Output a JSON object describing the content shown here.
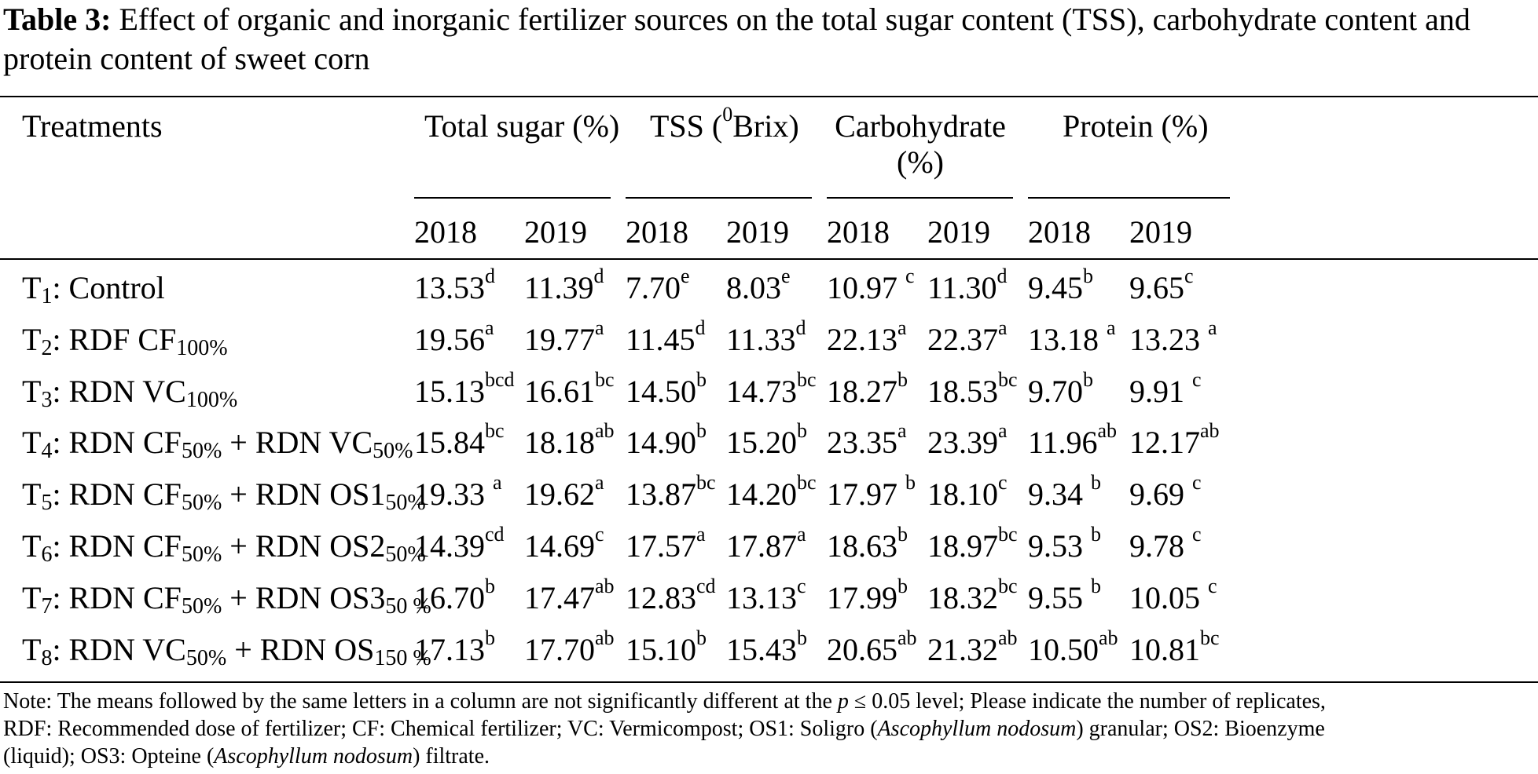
{
  "caption": {
    "label": "Table 3:",
    "text": "Effect of organic and inorganic fertilizer sources on the total sugar content (TSS), carbohydrate content and protein content of sweet corn"
  },
  "header": {
    "treatments": "Treatments",
    "groups": [
      "Total sugar (%)",
      "TSS (",
      "Carbohydrate",
      "Protein (%)"
    ],
    "tss_sup": "0",
    "tss_tail": "Brix)",
    "carb_line2": "(%)",
    "years": [
      "2018",
      "2019",
      "2018",
      "2019",
      "2018",
      "2019",
      "2018",
      "2019"
    ]
  },
  "rows": [
    {
      "t": "T",
      "n": "1",
      "name": ": Control",
      "parts": [],
      "cells": [
        [
          "13.53",
          "d"
        ],
        [
          "11.39",
          "d"
        ],
        [
          "7.70",
          "e"
        ],
        [
          "8.03",
          "e"
        ],
        [
          "10.97 ",
          "c"
        ],
        [
          "11.30",
          "d"
        ],
        [
          "9.45",
          "b"
        ],
        [
          "9.65",
          "c"
        ]
      ]
    },
    {
      "t": "T",
      "n": "2",
      "name": ": RDF CF",
      "sub1": "100%",
      "cells": [
        [
          "19.56",
          "a"
        ],
        [
          "19.77",
          "a"
        ],
        [
          "11.45",
          "d"
        ],
        [
          "11.33",
          "d"
        ],
        [
          "22.13",
          "a"
        ],
        [
          "22.37",
          "a"
        ],
        [
          "13.18 ",
          "a"
        ],
        [
          "13.23 ",
          "a"
        ]
      ]
    },
    {
      "t": "T",
      "n": "3",
      "name": ": RDN VC",
      "sub1": "100%",
      "cells": [
        [
          "15.13",
          "bcd"
        ],
        [
          "16.61",
          "bc"
        ],
        [
          "14.50",
          "b"
        ],
        [
          "14.73",
          "bc"
        ],
        [
          "18.27",
          "b"
        ],
        [
          "18.53",
          "bc"
        ],
        [
          "9.70",
          "b"
        ],
        [
          "9.91 ",
          "c"
        ]
      ]
    },
    {
      "t": "T",
      "n": "4",
      "name": ": RDN CF",
      "sub1": "50%",
      "mid": " + RDN VC",
      "sub2": "50%",
      "cells": [
        [
          "15.84",
          "bc"
        ],
        [
          "18.18",
          "ab"
        ],
        [
          "14.90",
          "b"
        ],
        [
          "15.20",
          "b"
        ],
        [
          "23.35",
          "a"
        ],
        [
          "23.39",
          "a"
        ],
        [
          "11.96",
          "ab"
        ],
        [
          "12.17",
          "ab"
        ]
      ]
    },
    {
      "t": "T",
      "n": "5",
      "name": ": RDN CF",
      "sub1": "50%",
      "mid": " + RDN OS1",
      "sub2": "50%",
      "cells": [
        [
          "19.33 ",
          "a"
        ],
        [
          "19.62",
          "a"
        ],
        [
          "13.87",
          "bc"
        ],
        [
          "14.20",
          "bc"
        ],
        [
          "17.97 ",
          "b"
        ],
        [
          "18.10",
          "c"
        ],
        [
          "9.34 ",
          "b"
        ],
        [
          "9.69 ",
          "c"
        ]
      ]
    },
    {
      "t": "T",
      "n": "6",
      "name": ": RDN CF",
      "sub1": "50%",
      "mid": " + RDN OS2",
      "sub2": "50%",
      "cells": [
        [
          "14.39",
          "cd"
        ],
        [
          "14.69",
          "c"
        ],
        [
          "17.57",
          "a"
        ],
        [
          "17.87",
          "a"
        ],
        [
          "18.63",
          "b"
        ],
        [
          "18.97",
          "bc"
        ],
        [
          "9.53 ",
          "b"
        ],
        [
          "9.78 ",
          "c"
        ]
      ]
    },
    {
      "t": "T",
      "n": "7",
      "name": ": RDN CF",
      "sub1": "50%",
      "mid": " + RDN OS3",
      "sub2": "50 %",
      "cells": [
        [
          "16.70",
          "b"
        ],
        [
          "17.47",
          "ab"
        ],
        [
          "12.83",
          "cd"
        ],
        [
          "13.13",
          "c"
        ],
        [
          "17.99",
          "b"
        ],
        [
          "18.32",
          "bc"
        ],
        [
          "9.55 ",
          "b"
        ],
        [
          "10.05 ",
          "c"
        ]
      ]
    },
    {
      "t": "T",
      "n": "8",
      "name": ": RDN VC",
      "sub1": "50%",
      "mid": " + RDN OS",
      "sub2": "150 %",
      "cells": [
        [
          "17.13",
          "b"
        ],
        [
          "17.70",
          "ab"
        ],
        [
          "15.10",
          "b"
        ],
        [
          "15.43",
          "b"
        ],
        [
          "20.65",
          "ab"
        ],
        [
          "21.32",
          "ab"
        ],
        [
          "10.50",
          "ab"
        ],
        [
          "10.81",
          "bc"
        ]
      ]
    }
  ],
  "note": {
    "l1a": "Note: The means followed by the same letters in a column are not significantly different at the ",
    "l1p": "p",
    "l1b": " ≤ 0.05 level; Please indicate the number of replicates,",
    "l2a": "RDF: Recommended dose of fertilizer; CF: Chemical fertilizer; VC: Vermicompost; OS1: Soligro (",
    "l2i": "Ascophyllum nodosum",
    "l2b": ") granular; OS2: Bioenzyme",
    "l3a": "(liquid); OS3: Opteine (",
    "l3i": "Ascophyllum nodosum",
    "l3b": ") filtrate."
  }
}
